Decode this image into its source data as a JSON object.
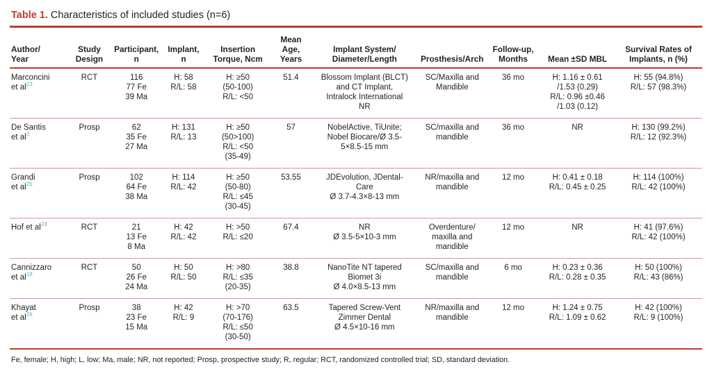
{
  "title": {
    "label": "Table 1.",
    "caption": "Characteristics of included studies (n=6)"
  },
  "colors": {
    "accent_red": "#c23b2b",
    "row_rule_red": "#e0948a",
    "reference_blue": "#62aecd",
    "text": "#231f20"
  },
  "table": {
    "columns": [
      {
        "key": "author",
        "header_lines": [
          "Author/",
          "Year"
        ]
      },
      {
        "key": "design",
        "header_lines": [
          "Study",
          "Design"
        ]
      },
      {
        "key": "participants",
        "header_lines": [
          "Participant,",
          "n"
        ]
      },
      {
        "key": "implants",
        "header_lines": [
          "Implant,",
          "n"
        ]
      },
      {
        "key": "torque",
        "header_lines": [
          "Insertion",
          "Torque, Ncm"
        ]
      },
      {
        "key": "age",
        "header_lines": [
          "Mean",
          "Age,",
          "Years"
        ]
      },
      {
        "key": "system",
        "header_lines": [
          "Implant System/",
          "Diameter/Length"
        ]
      },
      {
        "key": "prosthesis",
        "header_lines": [
          "Prosthesis/Arch"
        ]
      },
      {
        "key": "followup",
        "header_lines": [
          "Follow-up,",
          "Months"
        ]
      },
      {
        "key": "mbl",
        "header_lines": [
          "Mean ±SD MBL"
        ]
      },
      {
        "key": "survival",
        "header_lines": [
          "Survival Rates of",
          "Implants, n (%)"
        ]
      }
    ],
    "rows": [
      {
        "author_lines": [
          "Marconcini",
          "et al"
        ],
        "ref": "23",
        "design": "RCT",
        "participants": [
          "116",
          "77 Fe",
          "39 Ma"
        ],
        "implants": [
          "H: 58",
          "R/L: 58"
        ],
        "torque": [
          "H: ≥50",
          "(50-100)",
          "R/L: <50"
        ],
        "age": "51.4",
        "system": [
          "Blossom Implant (BLCT)",
          "and CT Implant,",
          "Intralock International",
          "NR"
        ],
        "prosthesis": [
          "SC/Maxilla and",
          "Mandible"
        ],
        "followup": "36 mo",
        "mbl": [
          "H: 1.16 ± 0.61",
          "/1.53 (0.29)",
          "R/L: 0.96 ±0.46",
          "/1.03 (0.12)"
        ],
        "survival": [
          "H: 55 (94.8%)",
          "R/L: 57 (98.3%)"
        ]
      },
      {
        "author_lines": [
          "De Santis",
          "et al"
        ],
        "ref": "3",
        "design": "Prosp",
        "participants": [
          "62",
          "35 Fe",
          "27 Ma"
        ],
        "implants": [
          "H: 131",
          "R/L: 13"
        ],
        "torque": [
          "H: ≥50",
          "(50>100)",
          "R/L: <50",
          "(35-49)"
        ],
        "age": "57",
        "system": [
          "NobelActive, TiUnite;",
          "Nobel Biocare/Ø 3.5-",
          "5×8.5-15 mm"
        ],
        "prosthesis": [
          "SC/maxilla and",
          "mandible"
        ],
        "followup": "36 mo",
        "mbl": [
          "NR"
        ],
        "survival": [
          "H: 130 (99.2%)",
          "R/L: 12 (92.3%)"
        ]
      },
      {
        "author_lines": [
          "Grandi",
          "et al"
        ],
        "ref": "25",
        "design": "Prosp",
        "participants": [
          "102",
          "64 Fe",
          "38 Ma"
        ],
        "implants": [
          "H: 114",
          "R/L: 42"
        ],
        "torque": [
          "H: ≥50",
          "(50-80)",
          "R/L: ≤45",
          "(30-45)"
        ],
        "age": "53.55",
        "system": [
          "JDEvolution, JDental-",
          "Care",
          "Ø 3.7-4.3×8-13 mm"
        ],
        "prosthesis": [
          "NR/maxilla and",
          "mandible"
        ],
        "followup": "12 mo",
        "mbl": [
          "H: 0.41 ± 0.18",
          "R/L: 0.45 ± 0.25"
        ],
        "survival": [
          "H: 114 (100%)",
          "R/L: 42 (100%)"
        ]
      },
      {
        "author_lines": [
          "Hof et al"
        ],
        "ref": "24",
        "design": "RCT",
        "participants": [
          "21",
          "13 Fe",
          "8 Ma"
        ],
        "implants": [
          "H: 42",
          "R/L: 42"
        ],
        "torque": [
          "H: >50",
          "R/L: ≤20"
        ],
        "age": "67.4",
        "system": [
          "NR",
          "Ø 3.5-5×10-3 mm"
        ],
        "prosthesis": [
          "Overdenture/",
          "maxilla and",
          "mandible"
        ],
        "followup": "12 mo",
        "mbl": [
          "NR"
        ],
        "survival": [
          "H: 41 (97.6%)",
          "R/L: 42 (100%)"
        ]
      },
      {
        "author_lines": [
          "Cannizzaro",
          "et al"
        ],
        "ref": "18",
        "design": "RCT",
        "participants": [
          "50",
          "26 Fe",
          "24 Ma"
        ],
        "implants": [
          "H: 50",
          "R/L: 50"
        ],
        "torque": [
          "H: >80",
          "R/L: ≤35",
          "(20-35)"
        ],
        "age": "38.8",
        "system": [
          "NanoTite NT tapered",
          "Biomet 3i",
          "Ø 4.0×8.5-13 mm"
        ],
        "prosthesis": [
          "SC/maxilla and",
          "mandible"
        ],
        "followup": "6 mo",
        "mbl": [
          "H: 0.23 ± 0.36",
          "R/L: 0.28 ± 0.35"
        ],
        "survival": [
          "H: 50 (100%)",
          "R/L: 43 (86%)"
        ]
      },
      {
        "author_lines": [
          "Khayat",
          "et al"
        ],
        "ref": "26",
        "design": "Prosp",
        "participants": [
          "38",
          "23 Fe",
          "15 Ma"
        ],
        "implants": [
          "H: 42",
          "R/L: 9"
        ],
        "torque": [
          "H: >70",
          "(70-176)",
          "R/L: ≤50",
          "(30-50)"
        ],
        "age": "63.5",
        "system": [
          "Tapered Screw-Vent",
          "Zimmer Dental",
          "Ø 4.5×10-16 mm"
        ],
        "prosthesis": [
          "NR/maxilla and",
          "mandible"
        ],
        "followup": "12 mo",
        "mbl": [
          "H: 1.24 ± 0.75",
          "R/L: 1.09 ± 0.62"
        ],
        "survival": [
          "H: 42 (100%)",
          "R/L: 9 (100%)"
        ]
      }
    ]
  },
  "footnote": "Fe, female; H, high; L, low; Ma, male; NR, not reported; Prosp, prospective study; R, regular; RCT, randomized controlled trial; SD, standard deviation."
}
